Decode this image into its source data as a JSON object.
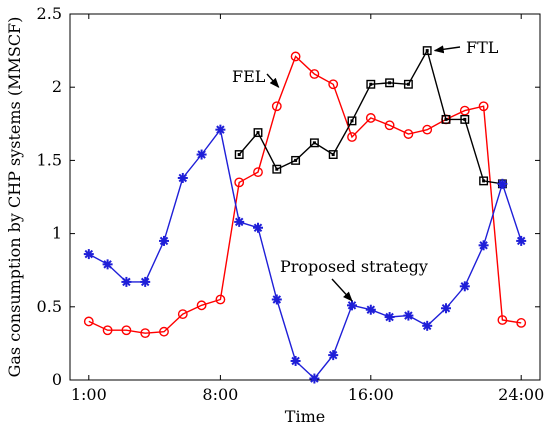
{
  "chart_data": {
    "type": "line",
    "xlabel": "Time",
    "ylabel": "Gas consumption by CHP systems (MMSCF)",
    "xlim": [
      0,
      25
    ],
    "ylim": [
      0,
      2.5
    ],
    "x_ticks": [
      {
        "value": 1,
        "label": "1:00"
      },
      {
        "value": 8,
        "label": "8:00"
      },
      {
        "value": 16,
        "label": "16:00"
      },
      {
        "value": 24,
        "label": "24:00"
      }
    ],
    "y_ticks": [
      {
        "value": 0,
        "label": "0"
      },
      {
        "value": 0.5,
        "label": "0.5"
      },
      {
        "value": 1,
        "label": "1"
      },
      {
        "value": 1.5,
        "label": "1.5"
      },
      {
        "value": 2,
        "label": "2"
      },
      {
        "value": 2.5,
        "label": "2.5"
      }
    ],
    "x": [
      1,
      2,
      3,
      4,
      5,
      6,
      7,
      8,
      9,
      10,
      11,
      12,
      13,
      14,
      15,
      16,
      17,
      18,
      19,
      20,
      21,
      22,
      23,
      24
    ],
    "series": [
      {
        "key": "fel",
        "color": "#ff0000",
        "marker": "circle",
        "values": [
          0.4,
          0.34,
          0.34,
          0.32,
          0.33,
          0.45,
          0.51,
          0.55,
          1.35,
          1.42,
          1.87,
          2.21,
          2.09,
          2.02,
          1.66,
          1.79,
          1.74,
          1.68,
          1.71,
          1.78,
          1.84,
          1.87,
          0.41,
          0.39
        ]
      },
      {
        "key": "ftl",
        "color": "#000000",
        "marker": "square",
        "values": [
          null,
          null,
          null,
          null,
          null,
          null,
          null,
          null,
          1.54,
          1.69,
          1.44,
          1.5,
          1.62,
          1.54,
          1.77,
          2.02,
          2.03,
          2.02,
          2.25,
          1.78,
          1.78,
          1.36,
          1.34,
          null
        ]
      },
      {
        "key": "proposed",
        "color": "#1f1fd8",
        "marker": "star",
        "values": [
          0.86,
          0.79,
          0.67,
          0.67,
          0.95,
          1.38,
          1.54,
          1.71,
          1.08,
          1.04,
          0.55,
          0.13,
          0.01,
          0.17,
          0.51,
          0.48,
          0.43,
          0.44,
          0.37,
          0.49,
          0.64,
          0.92,
          1.34,
          0.95
        ]
      }
    ],
    "annotations": [
      {
        "key": "fel",
        "text": "FEL",
        "point": {
          "x": 11.1,
          "y": 2.0
        }
      },
      {
        "key": "ftl",
        "text": "FTL",
        "point": {
          "x": 19.4,
          "y": 2.25
        }
      },
      {
        "key": "proposed",
        "text": "Proposed strategy",
        "point": {
          "x": 15.0,
          "y": 0.54
        }
      }
    ],
    "grid": false,
    "legend": "none"
  }
}
